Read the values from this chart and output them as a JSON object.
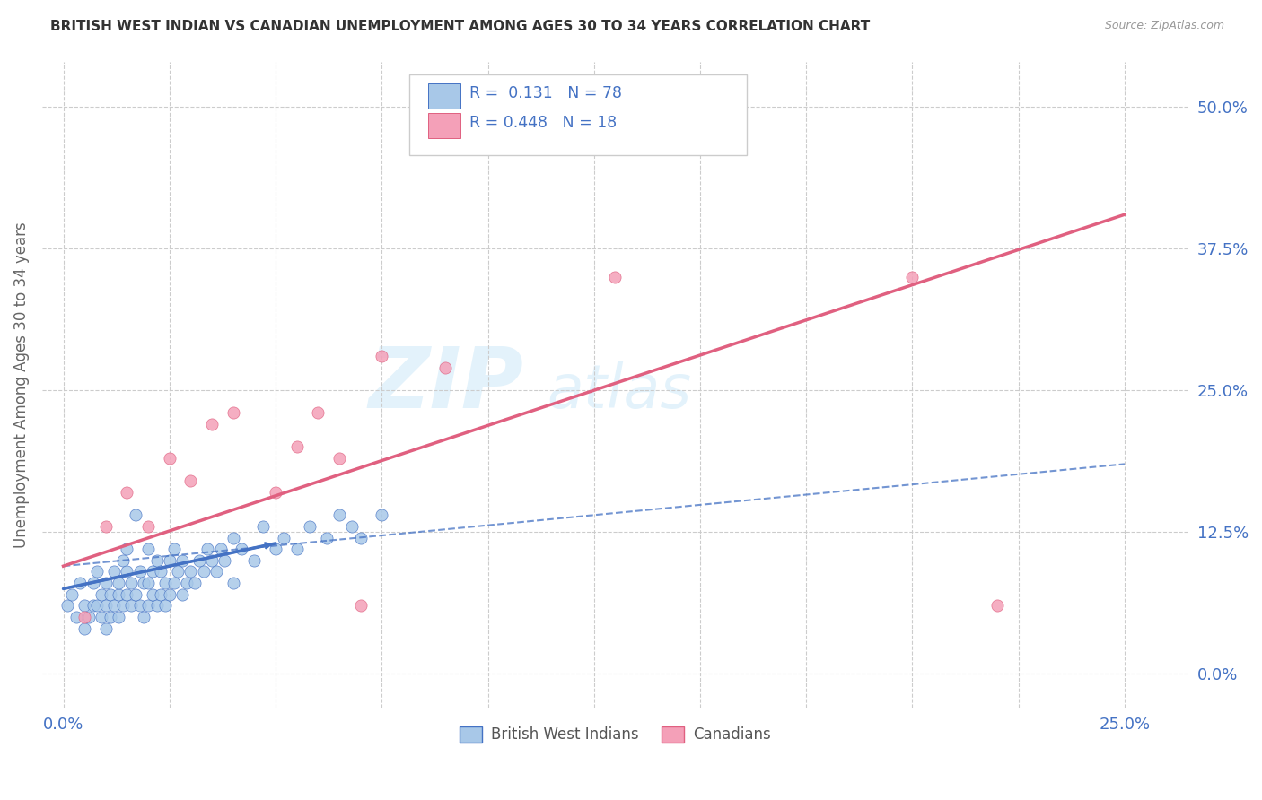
{
  "title": "BRITISH WEST INDIAN VS CANADIAN UNEMPLOYMENT AMONG AGES 30 TO 34 YEARS CORRELATION CHART",
  "source": "Source: ZipAtlas.com",
  "ylabel": "Unemployment Among Ages 30 to 34 years",
  "legend_label1": "British West Indians",
  "legend_label2": "Canadians",
  "R1": "0.131",
  "N1": "78",
  "R2": "0.448",
  "N2": "18",
  "color_bwi": "#a8c8e8",
  "color_bwi_line": "#4472c4",
  "color_can": "#f4a0b8",
  "color_can_line": "#e06080",
  "color_label": "#4472c4",
  "watermark_zip": "ZIP",
  "watermark_atlas": "atlas",
  "background_color": "#ffffff",
  "bwi_x": [
    0.001,
    0.002,
    0.003,
    0.004,
    0.005,
    0.005,
    0.006,
    0.007,
    0.007,
    0.008,
    0.008,
    0.009,
    0.009,
    0.01,
    0.01,
    0.01,
    0.011,
    0.011,
    0.012,
    0.012,
    0.013,
    0.013,
    0.013,
    0.014,
    0.014,
    0.015,
    0.015,
    0.015,
    0.016,
    0.016,
    0.017,
    0.017,
    0.018,
    0.018,
    0.019,
    0.019,
    0.02,
    0.02,
    0.02,
    0.021,
    0.021,
    0.022,
    0.022,
    0.023,
    0.023,
    0.024,
    0.024,
    0.025,
    0.025,
    0.026,
    0.026,
    0.027,
    0.028,
    0.028,
    0.029,
    0.03,
    0.031,
    0.032,
    0.033,
    0.034,
    0.035,
    0.036,
    0.037,
    0.038,
    0.04,
    0.04,
    0.042,
    0.045,
    0.047,
    0.05,
    0.052,
    0.055,
    0.058,
    0.062,
    0.065,
    0.068,
    0.07,
    0.075
  ],
  "bwi_y": [
    0.06,
    0.07,
    0.05,
    0.08,
    0.04,
    0.06,
    0.05,
    0.06,
    0.08,
    0.06,
    0.09,
    0.05,
    0.07,
    0.04,
    0.06,
    0.08,
    0.05,
    0.07,
    0.06,
    0.09,
    0.05,
    0.07,
    0.08,
    0.06,
    0.1,
    0.07,
    0.09,
    0.11,
    0.06,
    0.08,
    0.07,
    0.14,
    0.06,
    0.09,
    0.05,
    0.08,
    0.06,
    0.08,
    0.11,
    0.07,
    0.09,
    0.06,
    0.1,
    0.07,
    0.09,
    0.06,
    0.08,
    0.07,
    0.1,
    0.08,
    0.11,
    0.09,
    0.07,
    0.1,
    0.08,
    0.09,
    0.08,
    0.1,
    0.09,
    0.11,
    0.1,
    0.09,
    0.11,
    0.1,
    0.12,
    0.08,
    0.11,
    0.1,
    0.13,
    0.11,
    0.12,
    0.11,
    0.13,
    0.12,
    0.14,
    0.13,
    0.12,
    0.14
  ],
  "can_x": [
    0.005,
    0.01,
    0.015,
    0.02,
    0.025,
    0.03,
    0.035,
    0.04,
    0.05,
    0.055,
    0.06,
    0.065,
    0.07,
    0.075,
    0.09,
    0.13,
    0.2,
    0.22
  ],
  "can_y": [
    0.05,
    0.13,
    0.16,
    0.13,
    0.19,
    0.17,
    0.22,
    0.23,
    0.16,
    0.2,
    0.23,
    0.19,
    0.06,
    0.28,
    0.27,
    0.35,
    0.35,
    0.06
  ],
  "bwi_solid_line_x": [
    0.0,
    0.05
  ],
  "bwi_solid_line_y": [
    0.075,
    0.115
  ],
  "bwi_dash_line_x": [
    0.0,
    0.25
  ],
  "bwi_dash_line_y": [
    0.095,
    0.185
  ],
  "can_line_x": [
    0.0,
    0.25
  ],
  "can_line_y": [
    0.095,
    0.405
  ],
  "ytick_values": [
    0.0,
    0.125,
    0.25,
    0.375,
    0.5
  ],
  "ytick_labels": [
    "0.0%",
    "12.5%",
    "25.0%",
    "37.5%",
    "50.0%"
  ],
  "xtick_values": [
    0.0,
    0.025,
    0.05,
    0.075,
    0.1,
    0.125,
    0.15,
    0.175,
    0.2,
    0.225,
    0.25
  ],
  "xmin": -0.005,
  "xmax": 0.265,
  "ymin": -0.03,
  "ymax": 0.54
}
